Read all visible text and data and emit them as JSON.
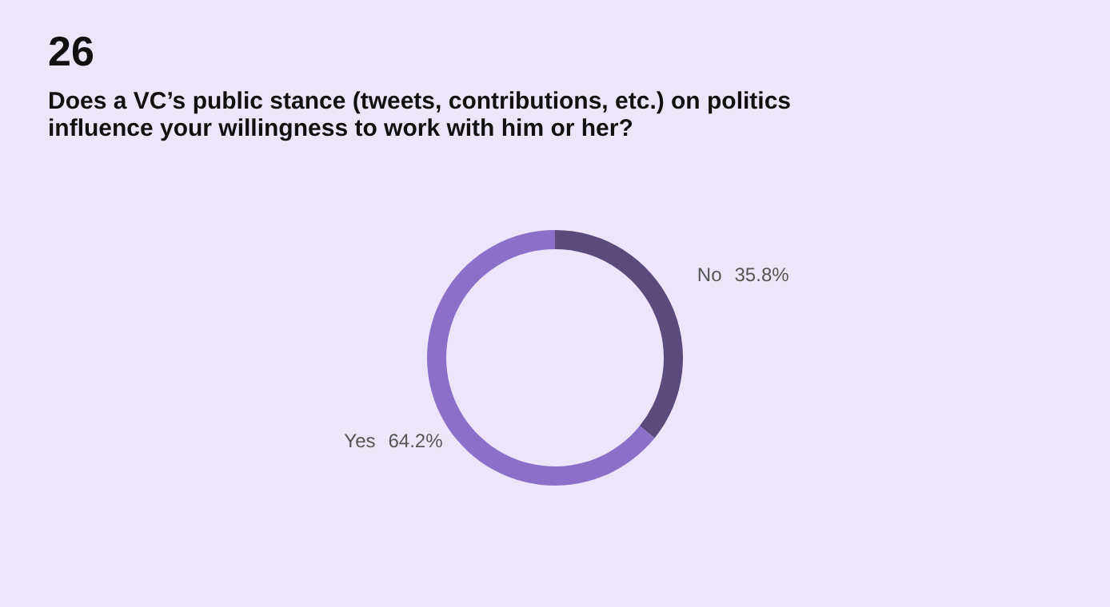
{
  "chart_data": {
    "type": "donut",
    "title": "26",
    "subtitle": "Does a VC’s public stance (tweets, contributions, etc.) on politics influence your willingness to work with him or her?",
    "categories": [
      "No",
      "Yes"
    ],
    "values": [
      35.8,
      64.2
    ],
    "colors": [
      "#5b4a7c",
      "#8a70c9"
    ],
    "value_labels": [
      "35.8%",
      "64.2%"
    ],
    "legend": false
  }
}
